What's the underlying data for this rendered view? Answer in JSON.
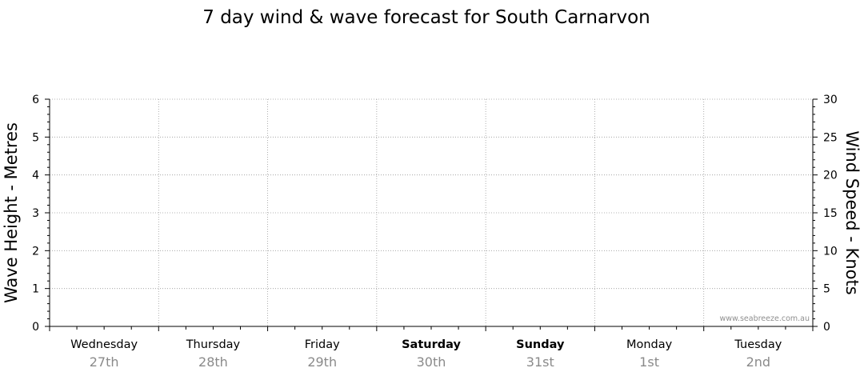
{
  "chart_data": {
    "type": "line",
    "title": "7 day wind & wave forecast for South Carnarvon",
    "left_axis": {
      "label": "Wave Height - Metres",
      "range": [
        0,
        6
      ],
      "ticks": [
        "0",
        "1",
        "2",
        "3",
        "4",
        "5",
        "6"
      ]
    },
    "right_axis": {
      "label": "Wind Speed - Knots",
      "range": [
        0,
        30
      ],
      "ticks": [
        "0",
        "5",
        "10",
        "15",
        "20",
        "25",
        "30"
      ]
    },
    "days": [
      {
        "name": "Wednesday",
        "date": "27th",
        "bold": false
      },
      {
        "name": "Thursday",
        "date": "28th",
        "bold": false
      },
      {
        "name": "Friday",
        "date": "29th",
        "bold": false
      },
      {
        "name": "Saturday",
        "date": "30th",
        "bold": true
      },
      {
        "name": "Sunday",
        "date": "31st",
        "bold": true
      },
      {
        "name": "Monday",
        "date": "1st",
        "bold": false
      },
      {
        "name": "Tuesday",
        "date": "2nd",
        "bold": false
      }
    ],
    "series": [],
    "grid": true,
    "watermark": "www.seabreeze.com.au"
  }
}
